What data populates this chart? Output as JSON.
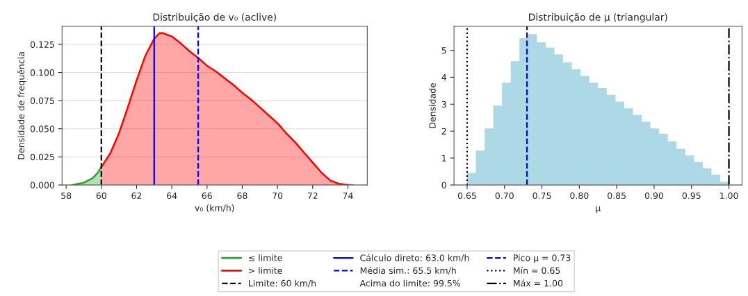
{
  "chart_data": [
    {
      "type": "area",
      "title": "Distribuição de v₀ (aclive)",
      "xlabel": "v₀ (km/h)",
      "ylabel": "Densidade de frequência",
      "series": [
        {
          "name": "≤ limite",
          "color": "#2ca02c",
          "x": [
            58.3,
            58.5,
            59,
            59.5,
            59.8,
            60
          ],
          "values": [
            0,
            0.0005,
            0.002,
            0.006,
            0.011,
            0.016
          ]
        },
        {
          "name": "> limite",
          "color": "#ff0000",
          "x": [
            60,
            60.5,
            61,
            61.5,
            62,
            62.5,
            63,
            63.3,
            63.5,
            64,
            64.5,
            65,
            65.5,
            66,
            66.5,
            67,
            67.5,
            68,
            68.5,
            69,
            69.5,
            70,
            70.5,
            71,
            71.5,
            72,
            72.5,
            73,
            73.5,
            74,
            74.3
          ],
          "values": [
            0.016,
            0.028,
            0.046,
            0.069,
            0.093,
            0.115,
            0.13,
            0.135,
            0.135,
            0.132,
            0.126,
            0.119,
            0.113,
            0.106,
            0.101,
            0.095,
            0.089,
            0.082,
            0.076,
            0.069,
            0.062,
            0.055,
            0.046,
            0.038,
            0.029,
            0.02,
            0.011,
            0.004,
            0.001,
            0.0002,
            0
          ]
        }
      ],
      "xlim": [
        57.77,
        75.1
      ],
      "xticks": [
        58,
        60,
        62,
        64,
        66,
        68,
        70,
        72,
        74
      ],
      "ylim": [
        0,
        0.141
      ],
      "yticks": [
        {
          "value": 0,
          "label": "0.000"
        },
        {
          "value": 0.025,
          "label": "0.025"
        },
        {
          "value": 0.05,
          "label": "0.050"
        },
        {
          "value": 0.075,
          "label": "0.075"
        },
        {
          "value": 0.1,
          "label": "0.100"
        },
        {
          "value": 0.125,
          "label": "0.125"
        }
      ],
      "grid": "y",
      "legend": "bottom",
      "ref_lines": [
        {
          "axis": "x",
          "value": 60,
          "label": "Limite: 60 km/h",
          "color": "#000000",
          "line_style": "dashed"
        },
        {
          "axis": "x",
          "value": 63.0,
          "label": "Cálculo direto: 63.0 km/h",
          "color": "#0000ff",
          "line_style": "solid"
        },
        {
          "axis": "x",
          "value": 65.5,
          "label": "Média sim.: 65.5 km/h",
          "color": "#0000ff",
          "line_style": "dashed"
        }
      ],
      "annotations": [
        "Acima do limite: 99.5%"
      ]
    },
    {
      "type": "histogram",
      "title": "Distribuição de μ (triangular)",
      "xlabel": "μ",
      "ylabel": "Densidade",
      "color": "#add8e6",
      "bins": [
        0.65,
        0.66167,
        0.67333,
        0.685,
        0.69667,
        0.70833,
        0.72,
        0.73167,
        0.74333,
        0.755,
        0.76667,
        0.77833,
        0.79,
        0.80167,
        0.81333,
        0.825,
        0.83667,
        0.84833,
        0.86,
        0.87167,
        0.88333,
        0.895,
        0.90667,
        0.91833,
        0.93,
        0.94167,
        0.95333,
        0.965,
        0.97667,
        0.98833,
        1.0
      ],
      "values": [
        0.45,
        1.28,
        2.1,
        2.95,
        3.8,
        4.6,
        5.45,
        5.6,
        5.3,
        5.1,
        4.85,
        4.55,
        4.3,
        4.05,
        3.8,
        3.6,
        3.35,
        3.1,
        2.85,
        2.6,
        2.35,
        2.1,
        1.9,
        1.62,
        1.35,
        1.1,
        0.85,
        0.62,
        0.38,
        0.12
      ],
      "xlim": [
        0.6325,
        1.0175
      ],
      "xticks": [
        {
          "value": 0.65,
          "label": "0.65"
        },
        {
          "value": 0.7,
          "label": "0.70"
        },
        {
          "value": 0.75,
          "label": "0.75"
        },
        {
          "value": 0.8,
          "label": "0.80"
        },
        {
          "value": 0.85,
          "label": "0.85"
        },
        {
          "value": 0.9,
          "label": "0.90"
        },
        {
          "value": 0.95,
          "label": "0.95"
        },
        {
          "value": 1.0,
          "label": "1.00"
        }
      ],
      "ylim": [
        0,
        5.89
      ],
      "yticks": [
        0,
        1,
        2,
        3,
        4,
        5
      ],
      "legend": "bottom",
      "ref_lines": [
        {
          "axis": "x",
          "value": 0.73,
          "label": "Pico μ = 0.73",
          "color": "#0000ff",
          "line_style": "dashed"
        },
        {
          "axis": "x",
          "value": 0.65,
          "label": "Mín = 0.65",
          "color": "#000000",
          "line_style": "dotted"
        },
        {
          "axis": "x",
          "value": 1.0,
          "label": "Máx = 1.00",
          "color": "#000000",
          "line_style": "dashdot"
        }
      ]
    }
  ]
}
